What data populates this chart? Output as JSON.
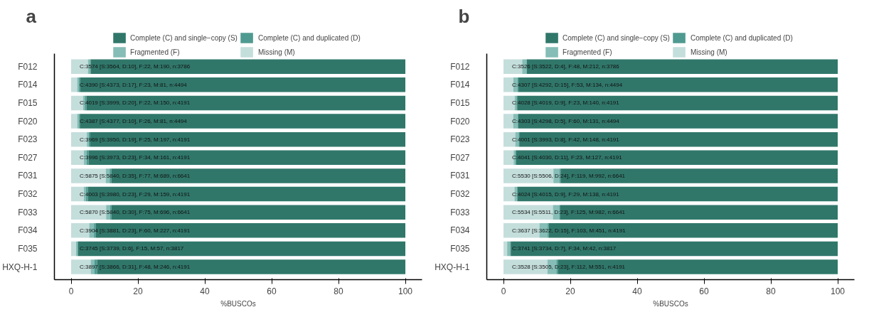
{
  "chart_data": [
    {
      "type": "bar",
      "orientation": "horizontal",
      "stacked": true,
      "title": "a",
      "xlabel": "%BUSCOs",
      "legend": "top",
      "grid": false,
      "categories": [
        "F012",
        "F014",
        "F015",
        "F020",
        "F023",
        "F027",
        "F031",
        "F032",
        "F033",
        "F034",
        "F035",
        "HXQ-H-1"
      ],
      "xlim": [
        -5,
        105
      ],
      "xticks": [
        0,
        20,
        40,
        60,
        80,
        100
      ],
      "series": [
        {
          "name": "Missing (M)",
          "color": "#c4dedc",
          "values": [
            5.02,
            1.8,
            3.58,
            1.8,
            4.7,
            3.84,
            10.37,
            3.79,
            10.48,
            5.42,
            1.49,
            5.87
          ]
        },
        {
          "name": "Fragmented (F)",
          "color": "#86bdb6",
          "values": [
            0.58,
            0.51,
            0.52,
            0.58,
            0.6,
            0.81,
            1.16,
            0.69,
            1.13,
            1.43,
            0.39,
            1.15
          ]
        },
        {
          "name": "Complete (C) and duplicated (D)",
          "color": "#4f9a90",
          "values": [
            0.26,
            0.38,
            0.48,
            0.22,
            0.45,
            0.55,
            0.53,
            0.55,
            0.45,
            0.55,
            0.16,
            0.74
          ]
        },
        {
          "name": "Complete (C) and single−copy (S)",
          "color": "#30776a",
          "values": [
            94.14,
            97.31,
            95.42,
            97.4,
            94.25,
            94.8,
            87.94,
            94.97,
            87.94,
            92.6,
            97.96,
            92.25
          ]
        }
      ],
      "value_labels": [
        "C:3574 [S:3564, D:10], F:22, M:190, n:3786",
        "C:4390 [S:4373, D:17], F:23, M:81, n:4494",
        "C:4019 [S:3999, D:20], F:22, M:150, n:4191",
        "C:4387 [S:4377, D:10], F:26, M:81, n:4494",
        "C:3969 [S:3950, D:19], F:25, M:197, n:4191",
        "C:3996 [S:3973, D:23], F:34, M:161, n:4191",
        "C:5875 [S:5840, D:35], F:77, M:689, n:6641",
        "C:4003 [S:3980, D:23], F:29, M:159, n:4191",
        "C:5870 [S:5840, D:30], F:75, M:696, n:6641",
        "C:3904 [S:3881, D:23], F:60, M:227, n:4191",
        "C:3745 [S:3739, D:6], F:15, M:57, n:3817",
        "C:3897 [S:3866, D:31], F:48, M:246, n:4191"
      ]
    },
    {
      "type": "bar",
      "orientation": "horizontal",
      "stacked": true,
      "title": "b",
      "xlabel": "%BUSCOs",
      "legend": "top",
      "grid": false,
      "categories": [
        "F012",
        "F014",
        "F015",
        "F020",
        "F023",
        "F027",
        "F031",
        "F032",
        "F033",
        "F034",
        "F035",
        "HXQ-H-1"
      ],
      "xlim": [
        -5,
        105
      ],
      "xticks": [
        0,
        20,
        40,
        60,
        80,
        100
      ],
      "series": [
        {
          "name": "Missing (M)",
          "color": "#c4dedc",
          "values": [
            5.6,
            2.98,
            3.34,
            2.92,
            3.53,
            3.03,
            14.94,
            3.29,
            14.79,
            10.76,
            1.1,
            13.15
          ]
        },
        {
          "name": "Fragmented (F)",
          "color": "#86bdb6",
          "values": [
            1.27,
            1.18,
            0.55,
            1.34,
            1.0,
            0.55,
            1.79,
            0.69,
            1.88,
            2.46,
            0.89,
            2.67
          ]
        },
        {
          "name": "Complete (C) and duplicated (D)",
          "color": "#4f9a90",
          "values": [
            0.11,
            0.33,
            0.21,
            0.11,
            0.19,
            0.26,
            0.36,
            0.21,
            0.35,
            0.36,
            0.18,
            0.55
          ]
        },
        {
          "name": "Complete (C) and single−copy (S)",
          "color": "#30776a",
          "values": [
            93.03,
            95.51,
            95.9,
            95.64,
            95.28,
            96.16,
            82.91,
            95.8,
            82.98,
            86.42,
            97.83,
            83.63
          ]
        }
      ],
      "value_labels": [
        "C:3526 [S:3522, D:4], F:48, M:212, n:3786",
        "C:4307 [S:4292, D:15], F:53, M:134, n:4494",
        "C:4028 [S:4019, D:9], F:23, M:140, n:4191",
        "C:4303 [S:4298, D:5], F:60, M:131, n:4494",
        "C:4001 [S:3993, D:8], F:42, M:148, n:4191",
        "C:4041 [S:4030, D:11], F:23, M:127, n:4191",
        "C:5530 [S:5506, D:24], F:119, M:992, n:6641",
        "C:4024 [S:4015, D:9], F:29, M:138, n:4191",
        "C:5534 [S:5511, D:23], F:125, M:982, n:6641",
        "C:3637 [S:3622, D:15], F:103, M:451, n:4191",
        "C:3741 [S:3734, D:7], F:34, M:42, n:3817",
        "C:3528 [S:3505, D:23], F:112, M:551, n:4191"
      ]
    }
  ]
}
